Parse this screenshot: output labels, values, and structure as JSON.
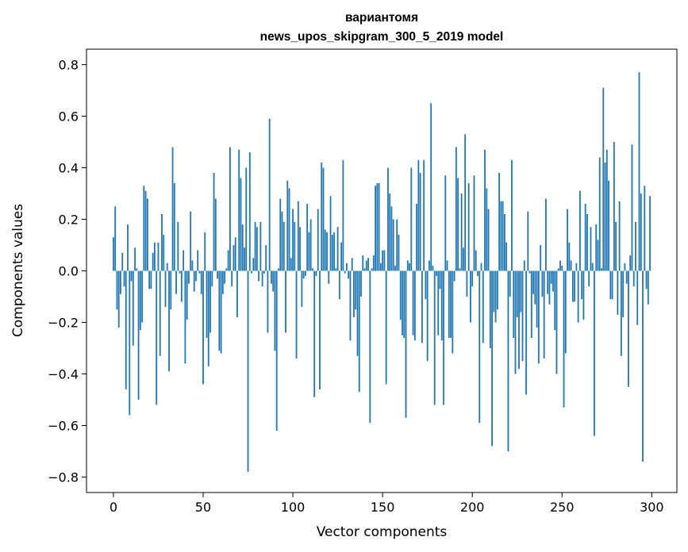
{
  "chart_data": {
    "type": "bar",
    "title_line1": "вариантомя",
    "title_line2": "news_upos_skipgram_300_5_2019 model",
    "xlabel": "Vector components",
    "ylabel": "Components values",
    "xlim": [
      -15,
      314
    ],
    "ylim": [
      -0.86,
      0.86
    ],
    "xticks": [
      0,
      50,
      100,
      150,
      200,
      250,
      300
    ],
    "yticks": [
      -0.8,
      -0.6,
      -0.4,
      -0.2,
      0.0,
      0.2,
      0.4,
      0.6,
      0.8
    ],
    "ytick_labels": [
      "−0.8",
      "−0.6",
      "−0.4",
      "−0.2",
      "0.0",
      "0.2",
      "0.4",
      "0.6",
      "0.8"
    ],
    "bar_color": "#1f77b4",
    "grid": false,
    "values": [
      0.13,
      0.25,
      -0.15,
      -0.22,
      -0.09,
      0.07,
      -0.06,
      -0.46,
      0.18,
      -0.56,
      -0.04,
      -0.29,
      0.09,
      0.01,
      -0.5,
      -0.23,
      -0.2,
      0.33,
      0.31,
      0.28,
      -0.07,
      -0.07,
      0.07,
      0.11,
      -0.52,
      0.11,
      -0.33,
      0.22,
      0.14,
      -0.14,
      0.03,
      -0.39,
      -0.15,
      0.48,
      0.34,
      -0.09,
      0.19,
      -0.01,
      -0.12,
      0.08,
      -0.36,
      -0.19,
      -0.05,
      0.23,
      0.04,
      -0.08,
      -0.04,
      0.08,
      -0.01,
      -0.09,
      -0.44,
      0.15,
      -0.26,
      -0.37,
      -0.24,
      -0.06,
      0.38,
      0.28,
      -0.03,
      -0.31,
      -0.32,
      -0.09,
      -0.05,
      0.01,
      0.08,
      0.48,
      -0.06,
      0.1,
      0.13,
      -0.18,
      0.47,
      0.36,
      0.18,
      0.09,
      0.4,
      -0.78,
      0.46,
      -0.01,
      0.05,
      0.19,
      0.17,
      -0.04,
      0.19,
      -0.06,
      -0.01,
      0.1,
      -0.24,
      0.59,
      -0.05,
      -0.08,
      -0.31,
      -0.62,
      0.01,
      0.28,
      0.23,
      0.19,
      -0.24,
      0.35,
      0.32,
      0.05,
      0.24,
      0.19,
      -0.34,
      0.27,
      0.17,
      -0.14,
      -0.03,
      -0.02,
      0.26,
      0.15,
      0.2,
      0.01,
      -0.49,
      -0.02,
      0.24,
      -0.46,
      0.42,
      0.4,
      0.16,
      0.15,
      -0.05,
      0.29,
      0.14,
      0.15,
      0.01,
      0.17,
      -0.11,
      0.11,
      0.43,
      -0.01,
      0.03,
      -0.03,
      -0.27,
      0.05,
      -0.18,
      -0.15,
      -0.33,
      -0.47,
      -0.1,
      0.06,
      0.01,
      0.04,
      0.05,
      -0.59,
      0.01,
      0.06,
      0.33,
      0.34,
      0.34,
      0.03,
      0.08,
      0.08,
      -0.44,
      0.4,
      0.3,
      0.25,
      0.2,
      0.02,
      0.2,
      0.14,
      -0.19,
      -0.25,
      -0.26,
      -0.57,
      0.04,
      0.03,
      0.4,
      -0.25,
      -0.27,
      0.26,
      0.43,
      0.38,
      -0.28,
      0.43,
      -0.11,
      -0.35,
      0.04,
      0.65,
      0.02,
      -0.52,
      -0.02,
      -0.25,
      -0.07,
      -0.27,
      -0.52,
      0.37,
      0.04,
      -0.26,
      -0.26,
      -0.32,
      -0.04,
      0.48,
      0.36,
      0.01,
      0.3,
      0.09,
      0.53,
      -0.1,
      0.34,
      -0.2,
      -0.06,
      0.37,
      0.08,
      -0.02,
      -0.59,
      0.03,
      -0.28,
      0.47,
      0.32,
      0.24,
      -0.3,
      -0.68,
      -0.16,
      -0.2,
      -0.15,
      0.38,
      0.27,
      0.27,
      0.22,
      0.11,
      -0.7,
      -0.1,
      0.43,
      -0.26,
      -0.4,
      -0.18,
      -0.38,
      -0.16,
      -0.35,
      0.04,
      -0.48,
      0.23,
      -0.01,
      -0.26,
      -0.09,
      -0.13,
      -0.22,
      -0.36,
      0.1,
      -0.1,
      -0.34,
      0.28,
      -0.09,
      -0.13,
      -0.05,
      -0.08,
      -0.23,
      -0.4,
      0.01,
      0.04,
      0.02,
      -0.53,
      -0.32,
      0.24,
      0.11,
      0.04,
      -0.12,
      -0.12,
      0.03,
      -0.2,
      0.31,
      -0.11,
      -0.19,
      0.26,
      0.22,
      -0.06,
      0.17,
      0.03,
      -0.64,
      0.18,
      0.12,
      0.44,
      0.01,
      0.71,
      0.42,
      0.47,
      0.35,
      -0.11,
      -0.11,
      0.5,
      0.19,
      -0.17,
      0.27,
      -0.33,
      -0.18,
      0.03,
      -0.05,
      -0.45,
      0.06,
      0.49,
      -0.06,
      0.19,
      -0.21,
      0.77,
      0.3,
      -0.74,
      0.33,
      -0.07,
      -0.13,
      0.29
    ]
  }
}
